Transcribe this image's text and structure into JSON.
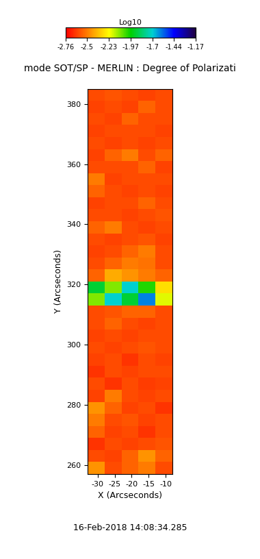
{
  "chart_data": {
    "type": "heatmap",
    "title": "mode SOT/SP - MERLIN : Degree of Polarizati",
    "subtitle": "16-Feb-2018 14:08:34.285",
    "x_label": "X (Arcseconds)",
    "y_label": "Y (Arcseconds)",
    "xlim": [
      -33,
      -8
    ],
    "ylim": [
      257,
      385
    ],
    "xticks": [
      -30,
      -25,
      -20,
      -15,
      -10
    ],
    "yticks": [
      260,
      280,
      300,
      320,
      340,
      360,
      380
    ],
    "x_edges": [
      -33,
      -28,
      -23,
      -18,
      -13,
      -8
    ],
    "y_edges": [
      257,
      261,
      265,
      269,
      273,
      277,
      281,
      285,
      289,
      293,
      297,
      301,
      305,
      309,
      313,
      317,
      321,
      325,
      329,
      333,
      337,
      341,
      345,
      349,
      353,
      357,
      361,
      365,
      369,
      373,
      377,
      381,
      385
    ],
    "cells": [
      [
        -2.45,
        -2.6,
        -2.55,
        -2.5,
        -2.6
      ],
      [
        -2.6,
        -2.62,
        -2.55,
        -2.45,
        -2.55
      ],
      [
        -2.65,
        -2.6,
        -2.62,
        -2.6,
        -2.58
      ],
      [
        -2.55,
        -2.62,
        -2.6,
        -2.65,
        -2.6
      ],
      [
        -2.5,
        -2.6,
        -2.58,
        -2.62,
        -2.6
      ],
      [
        -2.45,
        -2.55,
        -2.62,
        -2.6,
        -2.65
      ],
      [
        -2.62,
        -2.5,
        -2.6,
        -2.62,
        -2.6
      ],
      [
        -2.6,
        -2.65,
        -2.6,
        -2.63,
        -2.62
      ],
      [
        -2.65,
        -2.6,
        -2.62,
        -2.6,
        -2.6
      ],
      [
        -2.62,
        -2.6,
        -2.65,
        -2.6,
        -2.62
      ],
      [
        -2.6,
        -2.62,
        -2.6,
        -2.58,
        -2.6
      ],
      [
        -2.62,
        -2.6,
        -2.62,
        -2.6,
        -2.6
      ],
      [
        -2.6,
        -2.55,
        -2.6,
        -2.62,
        -2.6
      ],
      [
        -2.6,
        -2.58,
        -2.55,
        -2.55,
        -2.6
      ],
      [
        -2.1,
        -1.7,
        -1.9,
        -1.6,
        -2.2
      ],
      [
        -1.9,
        -2.1,
        -1.7,
        -2.0,
        -2.3
      ],
      [
        -2.55,
        -2.4,
        -2.45,
        -2.5,
        -2.55
      ],
      [
        -2.6,
        -2.55,
        -2.5,
        -2.52,
        -2.6
      ],
      [
        -2.62,
        -2.6,
        -2.55,
        -2.5,
        -2.6
      ],
      [
        -2.6,
        -2.62,
        -2.6,
        -2.58,
        -2.62
      ],
      [
        -2.55,
        -2.5,
        -2.6,
        -2.62,
        -2.6
      ],
      [
        -2.6,
        -2.6,
        -2.62,
        -2.6,
        -2.58
      ],
      [
        -2.62,
        -2.6,
        -2.6,
        -2.55,
        -2.6
      ],
      [
        -2.55,
        -2.6,
        -2.62,
        -2.6,
        -2.62
      ],
      [
        -2.5,
        -2.62,
        -2.6,
        -2.6,
        -2.6
      ],
      [
        -2.6,
        -2.6,
        -2.6,
        -2.55,
        -2.62
      ],
      [
        -2.62,
        -2.55,
        -2.5,
        -2.6,
        -2.55
      ],
      [
        -2.6,
        -2.62,
        -2.6,
        -2.62,
        -2.6
      ],
      [
        -2.62,
        -2.6,
        -2.6,
        -2.6,
        -2.62
      ],
      [
        -2.6,
        -2.62,
        -2.55,
        -2.6,
        -2.6
      ],
      [
        -2.62,
        -2.6,
        -2.62,
        -2.55,
        -2.6
      ],
      [
        -2.6,
        -2.58,
        -2.6,
        -2.62,
        -2.6
      ]
    ],
    "colorbar_label": "Log10",
    "colorbar_range": [
      -2.76,
      -1.17
    ],
    "colorbar_ticks": [
      -2.76,
      -2.5,
      -2.23,
      -1.97,
      -1.7,
      -1.44,
      -1.17
    ]
  }
}
